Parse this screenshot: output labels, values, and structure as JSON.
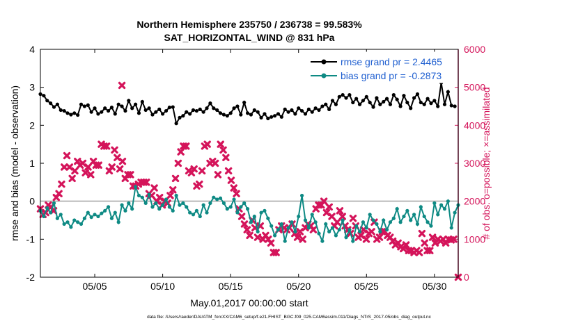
{
  "chart_data": {
    "type": "line",
    "title_line1": "Northern Hemisphere 235750 / 236738 = 99.583%",
    "title_line2": "SAT_HORIZONTAL_WIND @ 831 hPa",
    "xlabel": "May.01,2017 00:00:00 start",
    "ylabel_left": "rmse and bias (model - observation)",
    "ylabel_right": "# of obs: o=possible; ×=assimilated",
    "footer": "data file: /Users/raeder/DAI/ATM_forcXX/CAM6_setup/f.e21.FHIST_BGC.f09_025.CAM6assim.011/Diags_NTrS_2017-05/obs_diag_output.nc",
    "xlim": [
      1,
      31.75
    ],
    "ylim_left": [
      -2,
      4
    ],
    "ylim_right": [
      0,
      6000
    ],
    "x_ticks": [
      5,
      10,
      15,
      20,
      25,
      30
    ],
    "x_tick_labels": [
      "05/05",
      "05/10",
      "05/15",
      "05/20",
      "05/25",
      "05/30"
    ],
    "y_left_ticks": [
      "-2",
      "-1",
      "0",
      "1",
      "2",
      "3",
      "4"
    ],
    "y_right_ticks": [
      "0",
      "1000",
      "2000",
      "3000",
      "4000",
      "5000",
      "6000"
    ],
    "zero_line": 0,
    "start_day": 1.0,
    "step_days": 0.25,
    "colors": {
      "rmse": "#000000",
      "bias": "#0e8a84",
      "obs": "#d4145a",
      "zero": "#b9b9b9",
      "legend_text": "#1f5fd0"
    },
    "series": [
      {
        "name": "rmse grand pr = 2.4465",
        "axis": "left",
        "values": [
          2.82,
          2.78,
          2.65,
          2.58,
          2.48,
          2.55,
          2.4,
          2.38,
          2.32,
          2.28,
          2.32,
          2.27,
          2.55,
          2.5,
          2.53,
          2.35,
          2.45,
          2.3,
          2.35,
          2.45,
          2.38,
          2.47,
          2.3,
          2.55,
          2.5,
          2.38,
          2.65,
          2.45,
          2.55,
          2.32,
          2.62,
          2.4,
          2.45,
          2.28,
          2.35,
          2.42,
          2.3,
          2.38,
          2.47,
          2.48,
          2.05,
          2.2,
          2.25,
          2.35,
          2.3,
          2.4,
          2.38,
          2.42,
          2.35,
          2.45,
          2.58,
          2.45,
          2.4,
          2.32,
          2.28,
          2.25,
          2.32,
          2.45,
          2.5,
          2.28,
          2.6,
          2.32,
          2.28,
          2.4,
          2.35,
          2.2,
          2.3,
          2.18,
          2.22,
          2.25,
          2.3,
          2.22,
          2.42,
          2.35,
          2.4,
          2.3,
          2.45,
          2.38,
          2.3,
          2.42,
          2.35,
          2.45,
          2.4,
          2.5,
          2.55,
          2.42,
          2.65,
          2.55,
          2.75,
          2.8,
          2.72,
          2.8,
          2.6,
          2.7,
          2.55,
          2.65,
          2.75,
          2.6,
          2.48,
          2.72,
          2.55,
          2.62,
          2.7,
          2.55,
          2.8,
          2.68,
          2.5,
          2.78,
          2.6,
          2.45,
          2.72,
          2.82,
          2.6,
          2.55,
          2.7,
          2.58,
          2.65,
          2.5,
          3.12,
          2.55,
          2.88,
          2.52,
          2.5
        ]
      },
      {
        "name": "bias grand pr = -0.2873",
        "axis": "left",
        "values": [
          -0.25,
          -0.4,
          -0.18,
          -0.3,
          -0.05,
          -0.45,
          -0.35,
          -0.6,
          -0.55,
          -0.68,
          -0.5,
          -0.55,
          -0.6,
          -0.45,
          -0.3,
          -0.42,
          -0.35,
          -0.4,
          -0.32,
          -0.25,
          -0.15,
          -0.45,
          -0.3,
          -0.55,
          -0.1,
          -0.25,
          -0.05,
          -0.2,
          0.38,
          0.15,
          0.1,
          -0.05,
          0.18,
          -0.15,
          -0.05,
          -0.2,
          -0.1,
          0.05,
          -0.15,
          -0.25,
          0.15,
          -0.1,
          -0.05,
          -0.15,
          -0.3,
          -0.35,
          -0.25,
          -0.4,
          -0.1,
          -0.3,
          -0.05,
          0.1,
          0.05,
          0.08,
          -0.05,
          -0.2,
          -0.15,
          0.05,
          -0.3,
          -0.15,
          -0.05,
          -0.2,
          -0.55,
          -0.4,
          -0.8,
          -0.3,
          -0.25,
          -0.45,
          -0.65,
          -0.9,
          -0.75,
          -0.6,
          -1.05,
          -0.7,
          -0.55,
          -0.8,
          -0.4,
          0.15,
          -0.5,
          -0.7,
          -0.35,
          -0.55,
          -0.85,
          -1.05,
          -0.6,
          -0.8,
          -0.7,
          -0.9,
          -0.75,
          -0.5,
          -0.95,
          -0.75,
          -1.05,
          -0.65,
          -0.8,
          -0.55,
          -0.7,
          -0.35,
          -0.5,
          -0.6,
          -0.8,
          -0.5,
          -0.75,
          -0.55,
          -0.45,
          -0.2,
          -0.55,
          -0.4,
          -0.25,
          -0.5,
          -0.35,
          -0.6,
          -0.15,
          -0.4,
          -0.55,
          -0.65,
          -0.05,
          -0.35,
          -0.1,
          -0.2,
          0.0,
          -0.7,
          -0.3,
          -0.1
        ]
      },
      {
        "name": "obs assimilated",
        "axis": "right",
        "values": [
          1800,
          1650,
          1700,
          1900,
          1850,
          1750,
          2100,
          2200,
          2450,
          2900,
          3200,
          2900,
          2600,
          2800,
          3050,
          2950,
          3000,
          2750,
          2900,
          2700,
          3050,
          2950,
          2950,
          3500,
          3450,
          3450,
          2800,
          2900,
          3350,
          3150,
          2850,
          3050,
          2600,
          2700,
          2700,
          2400,
          2400,
          2450,
          2500,
          2500,
          2500,
          2200,
          2150,
          2350,
          2000,
          2100,
          1900,
          2000,
          1950,
          2150,
          2300,
          2600,
          3000,
          3300,
          3450,
          3450,
          2800,
          2750,
          2850,
          2400,
          2450,
          2800,
          3450,
          3500,
          3000,
          3050,
          3000,
          2700,
          3500,
          3350,
          3150,
          2800,
          2550,
          2350,
          2200,
          1800,
          1600,
          1400,
          1250,
          1100,
          1500,
          1300,
          1050,
          1350,
          1000,
          1100,
          1000,
          900,
          650,
          650,
          1250,
          1350,
          1300,
          1250,
          1300,
          1400,
          1150,
          1050,
          1200,
          1000,
          1300,
          1400,
          1350,
          1250,
          1800,
          1900,
          1900,
          2000,
          1700,
          1850,
          1600,
          1350,
          1450,
          1750,
          1600,
          1350,
          1250,
          1150,
          1550,
          1350,
          1050,
          1100,
          1250,
          1000,
          1150,
          1200,
          1450,
          1000,
          1050,
          1200,
          1200,
          1100,
          1050,
          950,
          850,
          900,
          800,
          750,
          850,
          700,
          700,
          650,
          700,
          650,
          1150,
          900,
          700,
          700,
          1050,
          900,
          1000,
          950,
          1000,
          900,
          1000,
          980,
          1000,
          0
        ],
        "start_day": 1.0,
        "step_days": 0.195
      }
    ],
    "obs_outlier": {
      "x": 7.0,
      "value": 5050
    }
  }
}
